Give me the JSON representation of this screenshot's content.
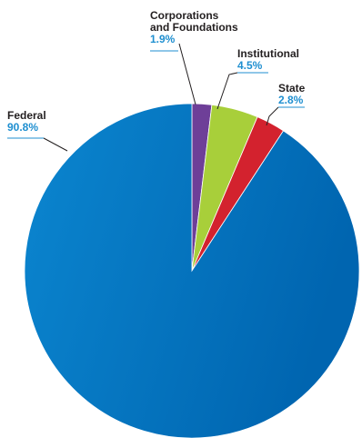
{
  "chart_data": {
    "type": "pie",
    "start_angle_deg": 0,
    "direction": "clockwise",
    "slices": [
      {
        "name_lines": [
          "Corporations",
          "and Foundations"
        ],
        "value": 1.9,
        "value_label": "1.9%",
        "color": "#6e3f98"
      },
      {
        "name_lines": [
          "Institutional"
        ],
        "value": 4.5,
        "value_label": "4.5%",
        "color": "#a8cf3a"
      },
      {
        "name_lines": [
          "State"
        ],
        "value": 2.8,
        "value_label": "2.8%",
        "color": "#d3222e"
      },
      {
        "name_lines": [
          "Federal"
        ],
        "value": 90.8,
        "value_label": "90.8%",
        "color": "#0a73bb"
      }
    ],
    "colors": {
      "label_text": "#231f20",
      "value_text": "#1f8fd0",
      "federal_gradient_light": "#0b86d0",
      "federal_gradient_dark": "#0065b0"
    }
  }
}
